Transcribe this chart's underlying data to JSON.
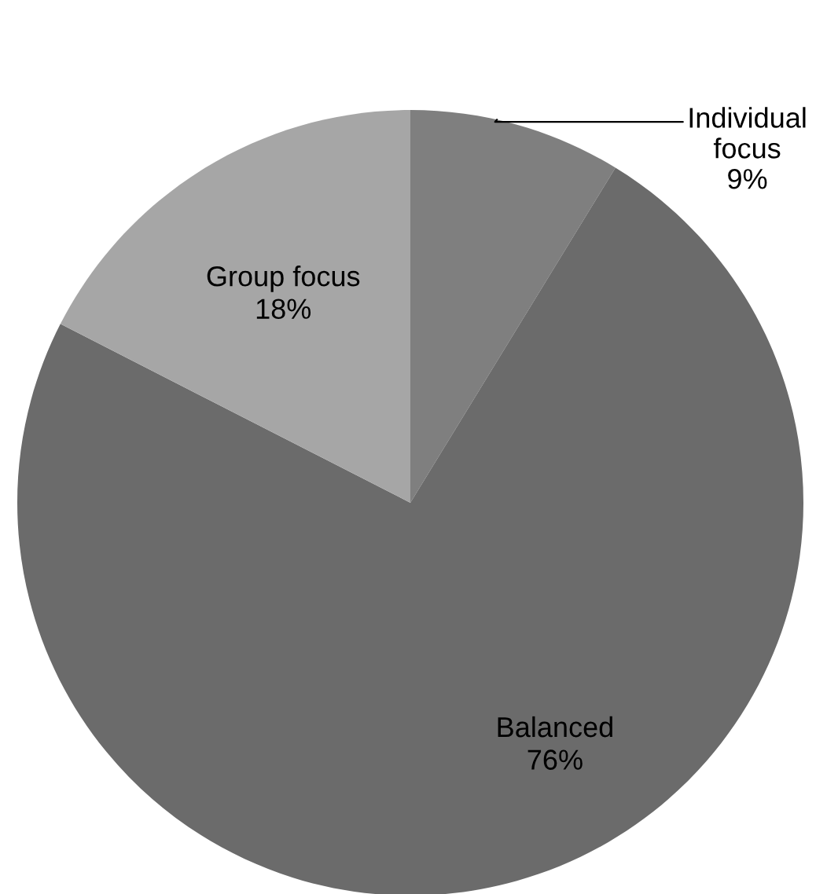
{
  "chart_data": {
    "type": "pie",
    "categories": [
      "Individual focus",
      "Balanced",
      "Group focus"
    ],
    "values": [
      9,
      76,
      18
    ],
    "colors": [
      "#7f7f7f",
      "#6b6b6b",
      "#a6a6a6"
    ],
    "value_labels": [
      "9%",
      "76%",
      "18%"
    ],
    "legend": false
  }
}
